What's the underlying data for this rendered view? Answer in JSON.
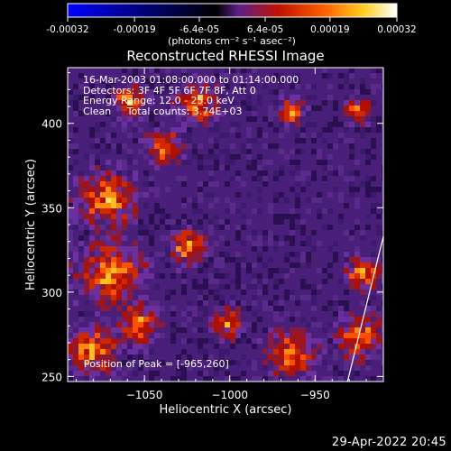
{
  "colorbar": {
    "ticks": [
      "-0.00032",
      "-0.00019",
      "-6.4e-05",
      "6.4e-05",
      "0.00019",
      "0.00032"
    ],
    "tick_values": [
      -0.00032,
      -0.00019,
      -6.4e-05,
      6.4e-05,
      0.00019,
      0.00032
    ],
    "units_label": "(photons cm⁻² s⁻¹ asec⁻²)",
    "colors": [
      "#0000ff",
      "#0000aa",
      "#000000",
      "#5c1f8c",
      "#c01000",
      "#ff6000",
      "#ffd020",
      "#ffffff"
    ]
  },
  "info": {
    "line1": "16-Mar-2003 01:08:00.000 to 01:14:00.000",
    "line2": "Detectors: 3F 4F 5F 6F 7F 8F, Att 0",
    "line3": "Energy Range: 12.0 - 25.0 keV",
    "line4": "Clean     Total counts: 3.74E+03"
  },
  "peak_label": "Position of Peak = [-965,260]",
  "timestamp": "29-Apr-2022 20:45",
  "chart_data": {
    "type": "heatmap",
    "title": "Reconstructed RHESSI Image",
    "xlabel": "Heliocentric X (arcsec)",
    "ylabel": "Heliocentric Y (arcsec)",
    "xlim": [
      -1095,
      -910
    ],
    "ylim": [
      247,
      433
    ],
    "x_ticks": [
      -1050,
      -1000,
      -950
    ],
    "x_tick_labels": [
      "−1050",
      "−1000",
      "−950"
    ],
    "y_ticks": [
      250,
      300,
      350,
      400
    ],
    "y_tick_labels": [
      "250",
      "300",
      "350",
      "400"
    ],
    "peak_position": [
      -965,
      260
    ],
    "limb_line": [
      [
        -931,
        247
      ],
      [
        -910,
        333
      ]
    ]
  }
}
